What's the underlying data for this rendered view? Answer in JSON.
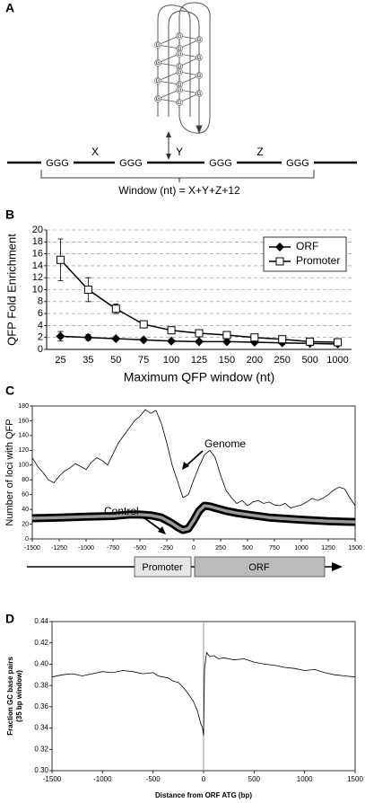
{
  "panel_labels": [
    "A",
    "B",
    "C",
    "D"
  ],
  "diagram": {
    "g_letter": "G",
    "triplet": "GGG",
    "loops": [
      "X",
      "Y",
      "Z"
    ],
    "formula": "Window (nt) = X+Y+Z+12"
  },
  "chart_data": [
    {
      "type": "line",
      "xlabel": "Maximum QFP window (nt)",
      "ylabel": "QFP Fold Enrichment",
      "categories": [
        "25",
        "35",
        "50",
        "75",
        "100",
        "125",
        "150",
        "200",
        "250",
        "500",
        "1000"
      ],
      "ylim": [
        0,
        20
      ],
      "yticks": [
        0,
        2,
        4,
        6,
        8,
        10,
        12,
        14,
        16,
        18,
        20
      ],
      "grid": true,
      "legend": "top-right",
      "series": [
        {
          "name": "ORF",
          "color": "#000000",
          "marker": "diamond",
          "values": [
            2.2,
            2.0,
            1.8,
            1.6,
            1.4,
            1.3,
            1.3,
            1.2,
            1.1,
            1.0,
            0.9
          ],
          "errors": [
            0.8,
            0.5,
            0.3,
            0.2,
            0.2,
            0.2,
            0.2,
            0.2,
            0.2,
            0.2,
            0.2
          ]
        },
        {
          "name": "Promoter",
          "color": "#000000",
          "marker": "square",
          "values": [
            15.0,
            10.0,
            6.8,
            4.2,
            3.2,
            2.7,
            2.4,
            2.0,
            1.7,
            1.3,
            1.2
          ],
          "errors": [
            3.5,
            2.0,
            0.8,
            0.3,
            0.2,
            0.2,
            0.2,
            0.2,
            0.2,
            0.2,
            0.2
          ]
        }
      ]
    },
    {
      "type": "line",
      "ylabel": "Number of loci with QFP",
      "xlim": [
        -1500,
        1500
      ],
      "xticks": [
        -1500,
        -1250,
        -1000,
        -750,
        -500,
        -250,
        0,
        250,
        500,
        750,
        1000,
        1250,
        1500
      ],
      "ylim": [
        0,
        180
      ],
      "yticks": [
        0,
        20,
        40,
        60,
        80,
        100,
        120,
        140,
        160,
        180
      ],
      "annotations": [
        "Genome",
        "Control"
      ],
      "gene": [
        "Promoter",
        "ORF"
      ],
      "series": [
        {
          "name": "Genome",
          "style": "thin",
          "x": [
            -1500,
            -1450,
            -1400,
            -1350,
            -1300,
            -1250,
            -1200,
            -1150,
            -1100,
            -1050,
            -1000,
            -950,
            -900,
            -850,
            -800,
            -750,
            -700,
            -650,
            -600,
            -550,
            -500,
            -450,
            -400,
            -350,
            -300,
            -250,
            -200,
            -150,
            -100,
            -50,
            0,
            50,
            100,
            150,
            200,
            250,
            300,
            350,
            400,
            450,
            500,
            550,
            600,
            650,
            700,
            750,
            800,
            850,
            900,
            950,
            1000,
            1050,
            1100,
            1150,
            1200,
            1250,
            1300,
            1350,
            1400,
            1450,
            1500
          ],
          "values": [
            110,
            98,
            90,
            80,
            76,
            85,
            92,
            96,
            102,
            98,
            94,
            104,
            110,
            106,
            100,
            115,
            130,
            140,
            150,
            160,
            166,
            175,
            170,
            174,
            156,
            130,
            100,
            78,
            56,
            60,
            80,
            98,
            114,
            120,
            110,
            86,
            66,
            56,
            48,
            52,
            45,
            50,
            52,
            48,
            50,
            46,
            45,
            48,
            42,
            44,
            46,
            50,
            55,
            52,
            55,
            60,
            66,
            70,
            68,
            56,
            45
          ]
        },
        {
          "name": "Control",
          "style": "band",
          "x": [
            -1500,
            -1250,
            -1000,
            -750,
            -600,
            -500,
            -400,
            -300,
            -250,
            -200,
            -150,
            -100,
            -50,
            0,
            50,
            100,
            150,
            200,
            300,
            400,
            500,
            700,
            1000,
            1250,
            1500
          ],
          "values": [
            28,
            29,
            30,
            31,
            33,
            33,
            32,
            29,
            25,
            21,
            16,
            12,
            14,
            25,
            38,
            45,
            44,
            42,
            38,
            35,
            33,
            29,
            26,
            24,
            23
          ]
        }
      ]
    },
    {
      "type": "line",
      "xlabel": "Distance from ORF ATG (bp)",
      "ylabel": [
        "Fraction GC base pairs",
        "(35 bp window)"
      ],
      "xlim": [
        -1500,
        1500
      ],
      "xticks": [
        -1500,
        -1000,
        -500,
        0,
        500,
        1000,
        1500
      ],
      "ylim": [
        0.3,
        0.44
      ],
      "yticks": [
        {
          "value": 0.3,
          "label": "0.30"
        },
        {
          "value": 0.32,
          "label": "0.32"
        },
        {
          "value": 0.34,
          "label": "0.34"
        },
        {
          "value": 0.36,
          "label": "0.36"
        },
        {
          "value": 0.38,
          "label": "0.38"
        },
        {
          "value": 0.4,
          "label": "0.40"
        },
        {
          "value": 0.42,
          "label": "0.42"
        },
        {
          "value": 0.44,
          "label": "0.44"
        }
      ],
      "vline": 0,
      "series": [
        {
          "name": "GC",
          "style": "thin",
          "x": [
            -1500,
            -1400,
            -1300,
            -1200,
            -1100,
            -1000,
            -900,
            -800,
            -700,
            -600,
            -500,
            -450,
            -400,
            -350,
            -300,
            -250,
            -200,
            -150,
            -100,
            -60,
            -30,
            -10,
            0,
            10,
            30,
            60,
            100,
            150,
            200,
            300,
            400,
            500,
            600,
            700,
            800,
            900,
            1000,
            1100,
            1200,
            1300,
            1400,
            1500
          ],
          "values": [
            0.388,
            0.39,
            0.391,
            0.389,
            0.391,
            0.393,
            0.392,
            0.394,
            0.393,
            0.391,
            0.392,
            0.389,
            0.388,
            0.387,
            0.384,
            0.383,
            0.378,
            0.372,
            0.365,
            0.356,
            0.345,
            0.34,
            0.333,
            0.396,
            0.411,
            0.407,
            0.408,
            0.405,
            0.406,
            0.404,
            0.405,
            0.402,
            0.4,
            0.399,
            0.397,
            0.396,
            0.394,
            0.395,
            0.392,
            0.39,
            0.389,
            0.388
          ]
        }
      ]
    }
  ]
}
